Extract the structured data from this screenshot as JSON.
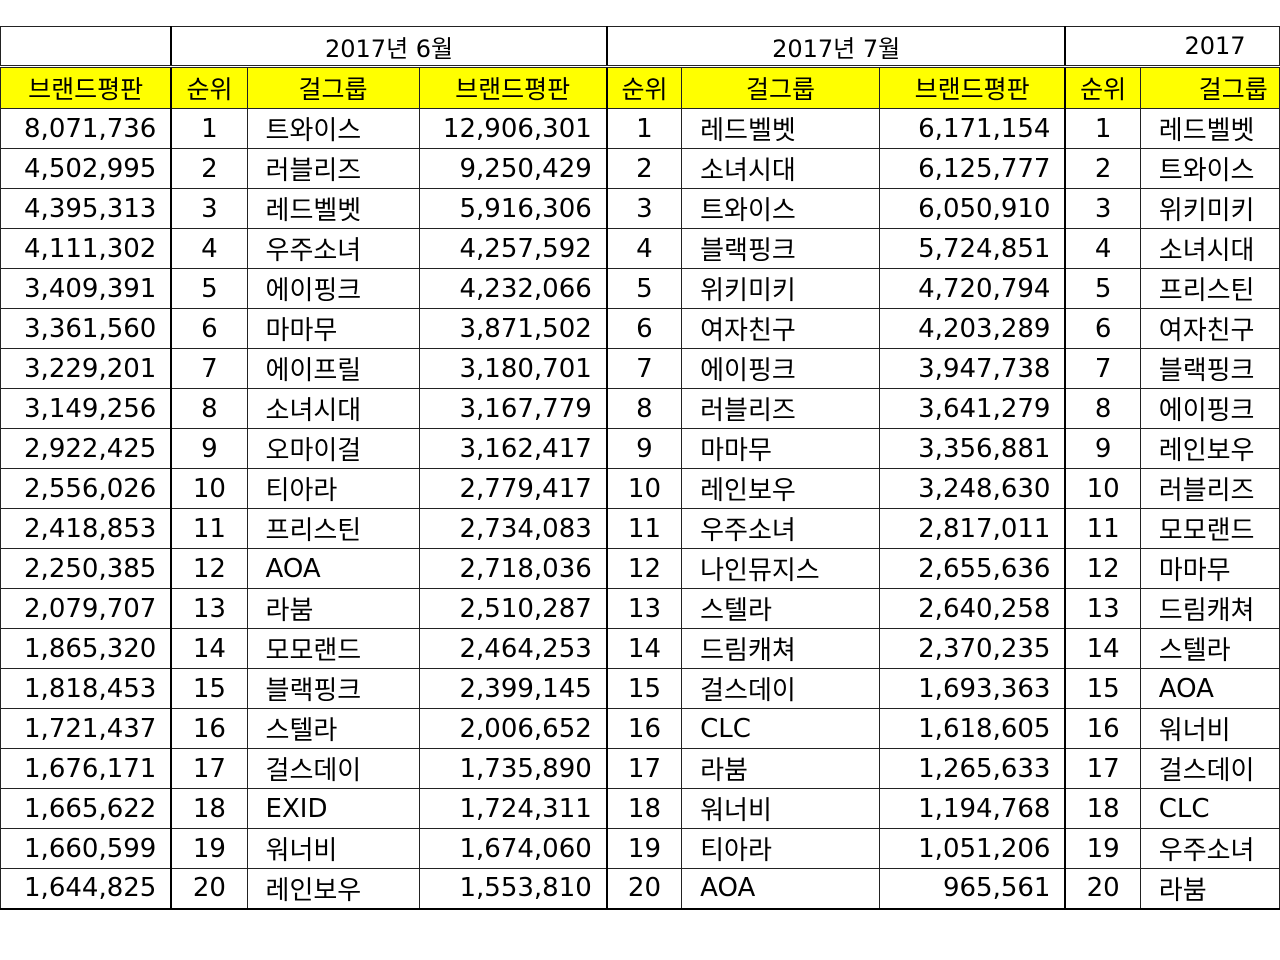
{
  "months": [
    "2017년 6월",
    "2017년 7월",
    "2017"
  ],
  "headers": {
    "prev_brand": "브랜드평판",
    "rank": "순위",
    "group": "걸그룹",
    "brand": "브랜드평판"
  },
  "rows": [
    {
      "prev": "8,071,736",
      "r1": "1",
      "g1": "트와이스",
      "v1": "12,906,301",
      "r2": "1",
      "g2": "레드벨벳",
      "v2": "6,171,154",
      "r3": "1",
      "g3": "레드벨벳"
    },
    {
      "prev": "4,502,995",
      "r1": "2",
      "g1": "러블리즈",
      "v1": "9,250,429",
      "r2": "2",
      "g2": "소녀시대",
      "v2": "6,125,777",
      "r3": "2",
      "g3": "트와이스"
    },
    {
      "prev": "4,395,313",
      "r1": "3",
      "g1": "레드벨벳",
      "v1": "5,916,306",
      "r2": "3",
      "g2": "트와이스",
      "v2": "6,050,910",
      "r3": "3",
      "g3": "위키미키"
    },
    {
      "prev": "4,111,302",
      "r1": "4",
      "g1": "우주소녀",
      "v1": "4,257,592",
      "r2": "4",
      "g2": "블랙핑크",
      "v2": "5,724,851",
      "r3": "4",
      "g3": "소녀시대"
    },
    {
      "prev": "3,409,391",
      "r1": "5",
      "g1": "에이핑크",
      "v1": "4,232,066",
      "r2": "5",
      "g2": "위키미키",
      "v2": "4,720,794",
      "r3": "5",
      "g3": "프리스틴"
    },
    {
      "prev": "3,361,560",
      "r1": "6",
      "g1": "마마무",
      "v1": "3,871,502",
      "r2": "6",
      "g2": "여자친구",
      "v2": "4,203,289",
      "r3": "6",
      "g3": "여자친구"
    },
    {
      "prev": "3,229,201",
      "r1": "7",
      "g1": "에이프릴",
      "v1": "3,180,701",
      "r2": "7",
      "g2": "에이핑크",
      "v2": "3,947,738",
      "r3": "7",
      "g3": "블랙핑크"
    },
    {
      "prev": "3,149,256",
      "r1": "8",
      "g1": "소녀시대",
      "v1": "3,167,779",
      "r2": "8",
      "g2": "러블리즈",
      "v2": "3,641,279",
      "r3": "8",
      "g3": "에이핑크"
    },
    {
      "prev": "2,922,425",
      "r1": "9",
      "g1": "오마이걸",
      "v1": "3,162,417",
      "r2": "9",
      "g2": "마마무",
      "v2": "3,356,881",
      "r3": "9",
      "g3": "레인보우"
    },
    {
      "prev": "2,556,026",
      "r1": "10",
      "g1": "티아라",
      "v1": "2,779,417",
      "r2": "10",
      "g2": "레인보우",
      "v2": "3,248,630",
      "r3": "10",
      "g3": "러블리즈"
    },
    {
      "prev": "2,418,853",
      "r1": "11",
      "g1": "프리스틴",
      "v1": "2,734,083",
      "r2": "11",
      "g2": "우주소녀",
      "v2": "2,817,011",
      "r3": "11",
      "g3": "모모랜드"
    },
    {
      "prev": "2,250,385",
      "r1": "12",
      "g1": "AOA",
      "v1": "2,718,036",
      "r2": "12",
      "g2": "나인뮤지스",
      "v2": "2,655,636",
      "r3": "12",
      "g3": "마마무"
    },
    {
      "prev": "2,079,707",
      "r1": "13",
      "g1": "라붐",
      "v1": "2,510,287",
      "r2": "13",
      "g2": "스텔라",
      "v2": "2,640,258",
      "r3": "13",
      "g3": "드림캐쳐"
    },
    {
      "prev": "1,865,320",
      "r1": "14",
      "g1": "모모랜드",
      "v1": "2,464,253",
      "r2": "14",
      "g2": "드림캐쳐",
      "v2": "2,370,235",
      "r3": "14",
      "g3": "스텔라"
    },
    {
      "prev": "1,818,453",
      "r1": "15",
      "g1": "블랙핑크",
      "v1": "2,399,145",
      "r2": "15",
      "g2": "걸스데이",
      "v2": "1,693,363",
      "r3": "15",
      "g3": "AOA"
    },
    {
      "prev": "1,721,437",
      "r1": "16",
      "g1": "스텔라",
      "v1": "2,006,652",
      "r2": "16",
      "g2": "CLC",
      "v2": "1,618,605",
      "r3": "16",
      "g3": "워너비"
    },
    {
      "prev": "1,676,171",
      "r1": "17",
      "g1": "걸스데이",
      "v1": "1,735,890",
      "r2": "17",
      "g2": "라붐",
      "v2": "1,265,633",
      "r3": "17",
      "g3": "걸스데이"
    },
    {
      "prev": "1,665,622",
      "r1": "18",
      "g1": "EXID",
      "v1": "1,724,311",
      "r2": "18",
      "g2": "워너비",
      "v2": "1,194,768",
      "r3": "18",
      "g3": "CLC"
    },
    {
      "prev": "1,660,599",
      "r1": "19",
      "g1": "워너비",
      "v1": "1,674,060",
      "r2": "19",
      "g2": "티아라",
      "v2": "1,051,206",
      "r3": "19",
      "g3": "우주소녀"
    },
    {
      "prev": "1,644,825",
      "r1": "20",
      "g1": "레인보우",
      "v1": "1,553,810",
      "r2": "20",
      "g2": "AOA",
      "v2": "965,561",
      "r3": "20",
      "g3": "라붐"
    }
  ]
}
